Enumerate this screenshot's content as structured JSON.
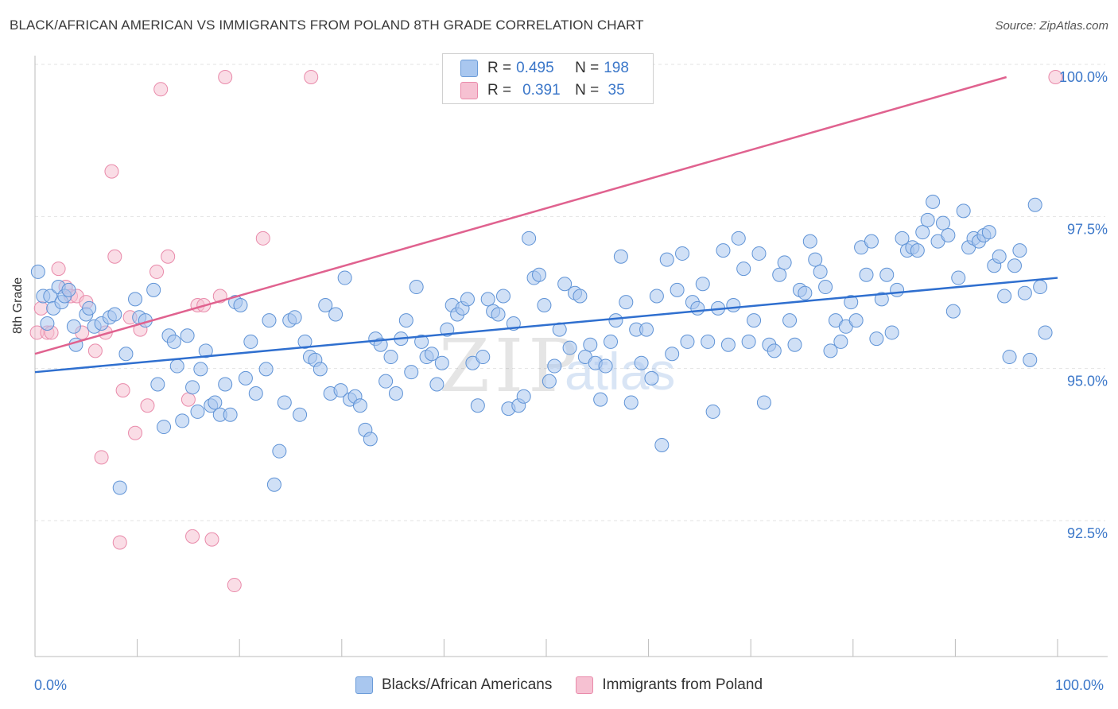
{
  "title": "BLACK/AFRICAN AMERICAN VS IMMIGRANTS FROM POLAND 8TH GRADE CORRELATION CHART",
  "source": "Source: ZipAtlas.com",
  "colors": {
    "blue_fill": "#a9c7ef",
    "blue_stroke": "#6a9bd8",
    "blue_line": "#2f6fcf",
    "pink_fill": "#f6c1d2",
    "pink_stroke": "#e98aaa",
    "pink_line": "#e0628f",
    "axis_text": "#3b77c9"
  },
  "legend": {
    "blue": {
      "r_label": "R = ",
      "r_value": "0.495",
      "n_label": "N = ",
      "n_value": "198"
    },
    "pink": {
      "r_label": "R = ",
      "r_value": "0.391",
      "n_label": "N = ",
      "n_value": " 35"
    }
  },
  "bottom_legend": [
    "Blacks/African Americans",
    "Immigrants from Poland"
  ],
  "x_axis": {
    "min_label": "0.0%",
    "max_label": "100.0%"
  },
  "y_axis": {
    "label": "8th Grade",
    "ticks": [
      "100.0%",
      "97.5%",
      "95.0%",
      "92.5%"
    ]
  },
  "watermark": {
    "zip": "ZIP",
    "atlas": "atlas"
  },
  "chart_data": {
    "type": "scatter",
    "xlabel": "",
    "ylabel": "8th Grade",
    "xlim": [
      0,
      100
    ],
    "ylim": [
      90.5,
      100.3
    ],
    "y_ticks": [
      100.0,
      97.5,
      95.0,
      92.5
    ],
    "series": [
      {
        "name": "Blacks/African Americans",
        "color": "#a9c7ef",
        "trend": [
          [
            0,
            95.15
          ],
          [
            100,
            96.7
          ]
        ],
        "points": [
          [
            0.3,
            96.8
          ],
          [
            0.8,
            96.4
          ],
          [
            1.2,
            95.95
          ],
          [
            1.5,
            96.4
          ],
          [
            1.8,
            96.2
          ],
          [
            2.3,
            96.55
          ],
          [
            2.6,
            96.3
          ],
          [
            2.9,
            96.4
          ],
          [
            3.3,
            96.5
          ],
          [
            3.8,
            95.9
          ],
          [
            4.0,
            95.6
          ],
          [
            5.0,
            96.1
          ],
          [
            5.3,
            96.2
          ],
          [
            5.8,
            95.9
          ],
          [
            6.5,
            95.95
          ],
          [
            7.3,
            96.05
          ],
          [
            7.8,
            96.1
          ],
          [
            8.3,
            93.25
          ],
          [
            8.9,
            95.45
          ],
          [
            9.8,
            96.35
          ],
          [
            10.2,
            96.05
          ],
          [
            10.8,
            96.0
          ],
          [
            11.6,
            96.5
          ],
          [
            12.0,
            94.95
          ],
          [
            12.6,
            94.25
          ],
          [
            13.1,
            95.75
          ],
          [
            13.6,
            95.65
          ],
          [
            13.9,
            95.25
          ],
          [
            14.4,
            94.35
          ],
          [
            14.9,
            95.75
          ],
          [
            15.4,
            94.9
          ],
          [
            15.9,
            94.5
          ],
          [
            16.2,
            95.2
          ],
          [
            16.7,
            95.5
          ],
          [
            17.2,
            94.6
          ],
          [
            17.6,
            94.65
          ],
          [
            18.1,
            94.45
          ],
          [
            18.6,
            94.95
          ],
          [
            19.1,
            94.45
          ],
          [
            19.6,
            96.3
          ],
          [
            20.1,
            96.25
          ],
          [
            20.6,
            95.05
          ],
          [
            21.1,
            95.65
          ],
          [
            21.6,
            94.8
          ],
          [
            22.6,
            95.2
          ],
          [
            22.9,
            96.0
          ],
          [
            23.4,
            93.3
          ],
          [
            23.9,
            93.85
          ],
          [
            24.4,
            94.65
          ],
          [
            24.9,
            96.0
          ],
          [
            25.4,
            96.05
          ],
          [
            25.9,
            94.45
          ],
          [
            26.4,
            95.65
          ],
          [
            26.9,
            95.4
          ],
          [
            27.4,
            95.35
          ],
          [
            27.9,
            95.2
          ],
          [
            28.4,
            96.25
          ],
          [
            28.9,
            94.8
          ],
          [
            29.4,
            96.1
          ],
          [
            29.9,
            94.85
          ],
          [
            30.3,
            96.7
          ],
          [
            30.8,
            94.7
          ],
          [
            31.3,
            94.75
          ],
          [
            31.8,
            94.6
          ],
          [
            32.3,
            94.2
          ],
          [
            32.8,
            94.05
          ],
          [
            33.3,
            95.7
          ],
          [
            33.8,
            95.6
          ],
          [
            34.3,
            95.0
          ],
          [
            34.8,
            95.4
          ],
          [
            35.3,
            94.8
          ],
          [
            35.8,
            95.7
          ],
          [
            36.3,
            96.0
          ],
          [
            36.8,
            95.15
          ],
          [
            37.3,
            96.55
          ],
          [
            37.8,
            95.65
          ],
          [
            38.3,
            95.4
          ],
          [
            38.8,
            95.45
          ],
          [
            39.3,
            94.95
          ],
          [
            39.8,
            95.3
          ],
          [
            40.3,
            95.85
          ],
          [
            40.8,
            96.25
          ],
          [
            41.3,
            96.1
          ],
          [
            41.8,
            96.2
          ],
          [
            42.3,
            96.35
          ],
          [
            42.8,
            95.3
          ],
          [
            43.3,
            94.6
          ],
          [
            43.8,
            95.4
          ],
          [
            44.3,
            96.35
          ],
          [
            44.8,
            96.15
          ],
          [
            45.3,
            96.1
          ],
          [
            45.8,
            96.4
          ],
          [
            46.3,
            94.55
          ],
          [
            46.8,
            95.95
          ],
          [
            47.3,
            94.6
          ],
          [
            47.8,
            94.75
          ],
          [
            48.3,
            97.35
          ],
          [
            48.8,
            96.7
          ],
          [
            49.3,
            96.75
          ],
          [
            49.8,
            96.25
          ],
          [
            50.3,
            95.0
          ],
          [
            50.8,
            95.25
          ],
          [
            51.3,
            95.85
          ],
          [
            51.8,
            96.6
          ],
          [
            52.3,
            95.55
          ],
          [
            52.8,
            96.45
          ],
          [
            53.3,
            96.4
          ],
          [
            53.8,
            95.4
          ],
          [
            54.3,
            95.6
          ],
          [
            54.8,
            95.3
          ],
          [
            55.3,
            94.7
          ],
          [
            55.8,
            95.25
          ],
          [
            56.3,
            95.65
          ],
          [
            56.8,
            96.0
          ],
          [
            57.3,
            97.05
          ],
          [
            57.8,
            96.3
          ],
          [
            58.3,
            94.65
          ],
          [
            58.8,
            95.85
          ],
          [
            59.3,
            95.3
          ],
          [
            59.8,
            95.85
          ],
          [
            60.3,
            95.05
          ],
          [
            60.8,
            96.4
          ],
          [
            61.3,
            93.95
          ],
          [
            61.8,
            97.0
          ],
          [
            62.3,
            95.45
          ],
          [
            62.8,
            96.5
          ],
          [
            63.3,
            97.1
          ],
          [
            63.8,
            95.65
          ],
          [
            64.3,
            96.3
          ],
          [
            64.8,
            96.2
          ],
          [
            65.3,
            96.6
          ],
          [
            65.8,
            95.65
          ],
          [
            66.3,
            94.5
          ],
          [
            66.8,
            96.2
          ],
          [
            67.3,
            97.15
          ],
          [
            67.8,
            95.6
          ],
          [
            68.3,
            96.25
          ],
          [
            68.8,
            97.35
          ],
          [
            69.3,
            96.85
          ],
          [
            69.8,
            95.65
          ],
          [
            70.3,
            96.0
          ],
          [
            70.8,
            97.1
          ],
          [
            71.3,
            94.65
          ],
          [
            71.8,
            95.6
          ],
          [
            72.3,
            95.5
          ],
          [
            72.8,
            96.75
          ],
          [
            73.3,
            96.95
          ],
          [
            73.8,
            96.0
          ],
          [
            74.3,
            95.6
          ],
          [
            74.8,
            96.5
          ],
          [
            75.3,
            96.45
          ],
          [
            75.8,
            97.3
          ],
          [
            76.3,
            97.0
          ],
          [
            76.8,
            96.8
          ],
          [
            77.3,
            96.55
          ],
          [
            77.8,
            95.5
          ],
          [
            78.3,
            96.0
          ],
          [
            78.8,
            95.65
          ],
          [
            79.3,
            95.9
          ],
          [
            79.8,
            96.3
          ],
          [
            80.3,
            96.0
          ],
          [
            80.8,
            97.2
          ],
          [
            81.3,
            96.75
          ],
          [
            81.8,
            97.3
          ],
          [
            82.3,
            95.7
          ],
          [
            82.8,
            96.35
          ],
          [
            83.3,
            96.75
          ],
          [
            83.8,
            95.8
          ],
          [
            84.3,
            96.5
          ],
          [
            84.8,
            97.35
          ],
          [
            85.3,
            97.15
          ],
          [
            85.8,
            97.2
          ],
          [
            86.3,
            97.15
          ],
          [
            86.8,
            97.45
          ],
          [
            87.3,
            97.65
          ],
          [
            87.8,
            97.95
          ],
          [
            88.3,
            97.3
          ],
          [
            88.8,
            97.6
          ],
          [
            89.3,
            97.4
          ],
          [
            89.8,
            96.15
          ],
          [
            90.3,
            96.7
          ],
          [
            90.8,
            97.8
          ],
          [
            91.3,
            97.2
          ],
          [
            91.8,
            97.35
          ],
          [
            92.3,
            97.3
          ],
          [
            92.8,
            97.4
          ],
          [
            93.3,
            97.45
          ],
          [
            93.8,
            96.9
          ],
          [
            94.3,
            97.05
          ],
          [
            94.8,
            96.4
          ],
          [
            95.3,
            95.4
          ],
          [
            95.8,
            96.9
          ],
          [
            96.3,
            97.15
          ],
          [
            96.8,
            96.45
          ],
          [
            97.3,
            95.35
          ],
          [
            97.8,
            97.9
          ],
          [
            98.3,
            96.55
          ],
          [
            98.8,
            95.8
          ]
        ]
      },
      {
        "name": "Immigrants from Poland",
        "color": "#f6c1d2",
        "trend": [
          [
            0,
            95.45
          ],
          [
            95,
            100.0
          ]
        ],
        "points": [
          [
            0.2,
            95.8
          ],
          [
            0.6,
            96.2
          ],
          [
            1.2,
            95.8
          ],
          [
            1.6,
            95.8
          ],
          [
            2.3,
            96.85
          ],
          [
            3.0,
            96.55
          ],
          [
            3.5,
            96.4
          ],
          [
            4.1,
            96.4
          ],
          [
            4.6,
            95.8
          ],
          [
            5.0,
            96.3
          ],
          [
            5.9,
            95.5
          ],
          [
            6.5,
            93.75
          ],
          [
            6.9,
            95.8
          ],
          [
            7.5,
            98.45
          ],
          [
            7.8,
            97.05
          ],
          [
            8.3,
            92.35
          ],
          [
            8.6,
            94.85
          ],
          [
            9.3,
            96.05
          ],
          [
            9.8,
            94.15
          ],
          [
            10.3,
            95.85
          ],
          [
            11.0,
            94.6
          ],
          [
            11.9,
            96.8
          ],
          [
            12.3,
            99.8
          ],
          [
            13.0,
            97.05
          ],
          [
            15.0,
            94.7
          ],
          [
            15.4,
            92.45
          ],
          [
            15.9,
            96.25
          ],
          [
            16.5,
            96.25
          ],
          [
            17.3,
            92.4
          ],
          [
            18.1,
            96.4
          ],
          [
            18.6,
            100.0
          ],
          [
            19.5,
            91.65
          ],
          [
            22.3,
            97.35
          ],
          [
            27.0,
            100.0
          ],
          [
            99.8,
            100.0
          ]
        ]
      }
    ]
  }
}
